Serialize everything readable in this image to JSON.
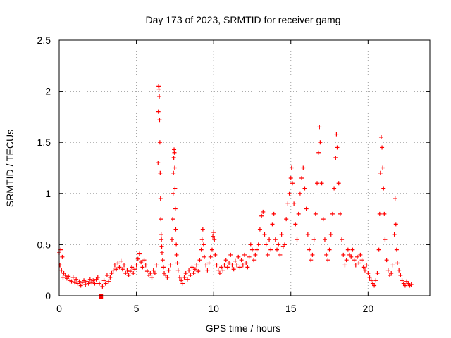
{
  "chart_data": {
    "type": "scatter",
    "title": "Day 173 of 2023, SRMTID for receiver gamg",
    "xlabel": "GPS time / hours",
    "ylabel": "SRMTID / TECUs",
    "xlim": [
      0,
      24
    ],
    "ylim": [
      0,
      2.5
    ],
    "grid": true,
    "marker": "+",
    "color": "#ff0000",
    "x_ticks": [
      {
        "value": 0,
        "label": "0"
      },
      {
        "value": 5,
        "label": "5"
      },
      {
        "value": 10,
        "label": "10"
      },
      {
        "value": 15,
        "label": "15"
      },
      {
        "value": 20,
        "label": "20"
      }
    ],
    "y_ticks": [
      {
        "value": 0,
        "label": "0"
      },
      {
        "value": 0.5,
        "label": "0.5"
      },
      {
        "value": 1,
        "label": "1"
      },
      {
        "value": 1.5,
        "label": "1.5"
      },
      {
        "value": 2,
        "label": "2"
      },
      {
        "value": 2.5,
        "label": "2.5"
      }
    ],
    "baseline_marker": {
      "x": 2.7,
      "y": 0
    },
    "series": [
      {
        "name": "SRMTID",
        "points": [
          [
            0.0,
            0.42
          ],
          [
            0.05,
            0.3
          ],
          [
            0.1,
            0.45
          ],
          [
            0.15,
            0.25
          ],
          [
            0.2,
            0.38
          ],
          [
            0.25,
            0.18
          ],
          [
            0.3,
            0.22
          ],
          [
            0.4,
            0.2
          ],
          [
            0.5,
            0.17
          ],
          [
            0.6,
            0.19
          ],
          [
            0.7,
            0.15
          ],
          [
            0.8,
            0.14
          ],
          [
            0.9,
            0.18
          ],
          [
            1.0,
            0.13
          ],
          [
            1.1,
            0.16
          ],
          [
            1.2,
            0.12
          ],
          [
            1.3,
            0.14
          ],
          [
            1.4,
            0.1
          ],
          [
            1.5,
            0.13
          ],
          [
            1.6,
            0.15
          ],
          [
            1.7,
            0.11
          ],
          [
            1.8,
            0.14
          ],
          [
            1.9,
            0.12
          ],
          [
            2.0,
            0.16
          ],
          [
            2.1,
            0.13
          ],
          [
            2.2,
            0.15
          ],
          [
            2.3,
            0.12
          ],
          [
            2.4,
            0.16
          ],
          [
            2.5,
            0.18
          ],
          [
            2.6,
            0.12
          ],
          [
            2.8,
            0.09
          ],
          [
            2.9,
            0.15
          ],
          [
            3.0,
            0.12
          ],
          [
            3.1,
            0.2
          ],
          [
            3.2,
            0.14
          ],
          [
            3.3,
            0.18
          ],
          [
            3.4,
            0.22
          ],
          [
            3.5,
            0.25
          ],
          [
            3.6,
            0.3
          ],
          [
            3.7,
            0.26
          ],
          [
            3.8,
            0.32
          ],
          [
            3.9,
            0.28
          ],
          [
            4.0,
            0.34
          ],
          [
            4.1,
            0.26
          ],
          [
            4.2,
            0.3
          ],
          [
            4.3,
            0.22
          ],
          [
            4.4,
            0.25
          ],
          [
            4.5,
            0.2
          ],
          [
            4.6,
            0.24
          ],
          [
            4.7,
            0.28
          ],
          [
            4.8,
            0.22
          ],
          [
            4.9,
            0.26
          ],
          [
            5.0,
            0.3
          ],
          [
            5.1,
            0.36
          ],
          [
            5.2,
            0.41
          ],
          [
            5.3,
            0.33
          ],
          [
            5.4,
            0.28
          ],
          [
            5.5,
            0.35
          ],
          [
            5.6,
            0.3
          ],
          [
            5.7,
            0.24
          ],
          [
            5.8,
            0.2
          ],
          [
            5.9,
            0.22
          ],
          [
            6.0,
            0.18
          ],
          [
            6.1,
            0.25
          ],
          [
            6.2,
            0.22
          ],
          [
            6.3,
            0.3
          ],
          [
            6.4,
            1.3
          ],
          [
            6.42,
            1.8
          ],
          [
            6.44,
            2.05
          ],
          [
            6.46,
            2.02
          ],
          [
            6.48,
            1.95
          ],
          [
            6.5,
            1.72
          ],
          [
            6.52,
            1.5
          ],
          [
            6.54,
            1.2
          ],
          [
            6.56,
            0.95
          ],
          [
            6.58,
            0.75
          ],
          [
            6.6,
            0.6
          ],
          [
            6.62,
            0.55
          ],
          [
            6.64,
            0.48
          ],
          [
            6.66,
            0.42
          ],
          [
            6.7,
            0.35
          ],
          [
            6.75,
            0.28
          ],
          [
            6.8,
            0.22
          ],
          [
            6.9,
            0.2
          ],
          [
            7.0,
            0.18
          ],
          [
            7.1,
            0.25
          ],
          [
            7.2,
            0.3
          ],
          [
            7.3,
            0.55
          ],
          [
            7.35,
            0.75
          ],
          [
            7.38,
            1.0
          ],
          [
            7.4,
            1.2
          ],
          [
            7.42,
            1.35
          ],
          [
            7.44,
            1.43
          ],
          [
            7.46,
            1.4
          ],
          [
            7.48,
            1.25
          ],
          [
            7.5,
            1.05
          ],
          [
            7.52,
            0.85
          ],
          [
            7.55,
            0.65
          ],
          [
            7.58,
            0.5
          ],
          [
            7.6,
            0.4
          ],
          [
            7.65,
            0.32
          ],
          [
            7.7,
            0.25
          ],
          [
            7.8,
            0.18
          ],
          [
            7.9,
            0.15
          ],
          [
            8.0,
            0.12
          ],
          [
            8.1,
            0.18
          ],
          [
            8.2,
            0.22
          ],
          [
            8.3,
            0.16
          ],
          [
            8.4,
            0.25
          ],
          [
            8.5,
            0.2
          ],
          [
            8.6,
            0.28
          ],
          [
            8.7,
            0.22
          ],
          [
            8.8,
            0.26
          ],
          [
            8.9,
            0.3
          ],
          [
            9.0,
            0.24
          ],
          [
            9.1,
            0.35
          ],
          [
            9.2,
            0.45
          ],
          [
            9.25,
            0.55
          ],
          [
            9.3,
            0.65
          ],
          [
            9.35,
            0.5
          ],
          [
            9.4,
            0.38
          ],
          [
            9.5,
            0.3
          ],
          [
            9.6,
            0.25
          ],
          [
            9.7,
            0.32
          ],
          [
            9.8,
            0.38
          ],
          [
            9.9,
            0.45
          ],
          [
            9.95,
            0.58
          ],
          [
            10.0,
            0.62
          ],
          [
            10.05,
            0.55
          ],
          [
            10.1,
            0.4
          ],
          [
            10.2,
            0.3
          ],
          [
            10.3,
            0.25
          ],
          [
            10.4,
            0.22
          ],
          [
            10.5,
            0.28
          ],
          [
            10.6,
            0.25
          ],
          [
            10.7,
            0.3
          ],
          [
            10.8,
            0.35
          ],
          [
            10.9,
            0.28
          ],
          [
            11.0,
            0.32
          ],
          [
            11.1,
            0.4
          ],
          [
            11.2,
            0.3
          ],
          [
            11.3,
            0.26
          ],
          [
            11.4,
            0.34
          ],
          [
            11.5,
            0.3
          ],
          [
            11.6,
            0.38
          ],
          [
            11.7,
            0.28
          ],
          [
            11.8,
            0.35
          ],
          [
            11.9,
            0.3
          ],
          [
            12.0,
            0.4
          ],
          [
            12.1,
            0.32
          ],
          [
            12.2,
            0.28
          ],
          [
            12.3,
            0.38
          ],
          [
            12.4,
            0.5
          ],
          [
            12.5,
            0.45
          ],
          [
            12.6,
            0.35
          ],
          [
            12.7,
            0.4
          ],
          [
            12.8,
            0.45
          ],
          [
            12.9,
            0.5
          ],
          [
            13.0,
            0.65
          ],
          [
            13.1,
            0.78
          ],
          [
            13.2,
            0.82
          ],
          [
            13.3,
            0.6
          ],
          [
            13.4,
            0.5
          ],
          [
            13.5,
            0.4
          ],
          [
            13.6,
            0.55
          ],
          [
            13.7,
            0.45
          ],
          [
            13.8,
            0.7
          ],
          [
            13.9,
            0.8
          ],
          [
            14.0,
            0.55
          ],
          [
            14.1,
            0.45
          ],
          [
            14.2,
            0.5
          ],
          [
            14.3,
            0.4
          ],
          [
            14.4,
            0.6
          ],
          [
            14.5,
            0.48
          ],
          [
            14.6,
            0.5
          ],
          [
            14.7,
            0.75
          ],
          [
            14.8,
            0.9
          ],
          [
            14.9,
            1.0
          ],
          [
            15.0,
            1.15
          ],
          [
            15.05,
            1.25
          ],
          [
            15.1,
            1.1
          ],
          [
            15.2,
            0.9
          ],
          [
            15.3,
            0.7
          ],
          [
            15.4,
            0.55
          ],
          [
            15.5,
            0.8
          ],
          [
            15.6,
            1.0
          ],
          [
            15.7,
            1.15
          ],
          [
            15.8,
            1.25
          ],
          [
            15.9,
            1.05
          ],
          [
            16.0,
            0.85
          ],
          [
            16.1,
            0.6
          ],
          [
            16.2,
            0.45
          ],
          [
            16.3,
            0.35
          ],
          [
            16.4,
            0.4
          ],
          [
            16.5,
            0.55
          ],
          [
            16.6,
            0.8
          ],
          [
            16.7,
            1.1
          ],
          [
            16.8,
            1.4
          ],
          [
            16.85,
            1.65
          ],
          [
            16.9,
            1.5
          ],
          [
            17.0,
            1.1
          ],
          [
            17.1,
            0.75
          ],
          [
            17.2,
            0.55
          ],
          [
            17.3,
            0.4
          ],
          [
            17.4,
            0.35
          ],
          [
            17.5,
            0.45
          ],
          [
            17.6,
            0.6
          ],
          [
            17.7,
            0.8
          ],
          [
            17.8,
            1.05
          ],
          [
            17.9,
            1.35
          ],
          [
            17.95,
            1.58
          ],
          [
            18.0,
            1.45
          ],
          [
            18.1,
            1.1
          ],
          [
            18.2,
            0.8
          ],
          [
            18.3,
            0.55
          ],
          [
            18.4,
            0.4
          ],
          [
            18.5,
            0.3
          ],
          [
            18.6,
            0.35
          ],
          [
            18.7,
            0.45
          ],
          [
            18.8,
            0.4
          ],
          [
            18.9,
            0.38
          ],
          [
            19.0,
            0.45
          ],
          [
            19.1,
            0.35
          ],
          [
            19.2,
            0.3
          ],
          [
            19.3,
            0.38
          ],
          [
            19.4,
            0.32
          ],
          [
            19.5,
            0.4
          ],
          [
            19.6,
            0.35
          ],
          [
            19.7,
            0.28
          ],
          [
            19.8,
            0.25
          ],
          [
            19.9,
            0.3
          ],
          [
            20.0,
            0.22
          ],
          [
            20.1,
            0.18
          ],
          [
            20.2,
            0.15
          ],
          [
            20.3,
            0.12
          ],
          [
            20.4,
            0.1
          ],
          [
            20.5,
            0.15
          ],
          [
            20.6,
            0.22
          ],
          [
            20.7,
            0.45
          ],
          [
            20.75,
            0.8
          ],
          [
            20.8,
            1.2
          ],
          [
            20.85,
            1.55
          ],
          [
            20.9,
            1.45
          ],
          [
            20.95,
            1.25
          ],
          [
            21.0,
            1.05
          ],
          [
            21.05,
            0.8
          ],
          [
            21.1,
            0.55
          ],
          [
            21.2,
            0.35
          ],
          [
            21.3,
            0.25
          ],
          [
            21.4,
            0.2
          ],
          [
            21.5,
            0.22
          ],
          [
            21.6,
            0.3
          ],
          [
            21.7,
            0.6
          ],
          [
            21.75,
            0.95
          ],
          [
            21.8,
            0.7
          ],
          [
            21.85,
            0.45
          ],
          [
            21.9,
            0.32
          ],
          [
            22.0,
            0.25
          ],
          [
            22.1,
            0.2
          ],
          [
            22.2,
            0.15
          ],
          [
            22.3,
            0.12
          ],
          [
            22.4,
            0.1
          ],
          [
            22.5,
            0.14
          ],
          [
            22.6,
            0.12
          ],
          [
            22.7,
            0.1
          ],
          [
            22.8,
            0.11
          ]
        ]
      }
    ]
  }
}
